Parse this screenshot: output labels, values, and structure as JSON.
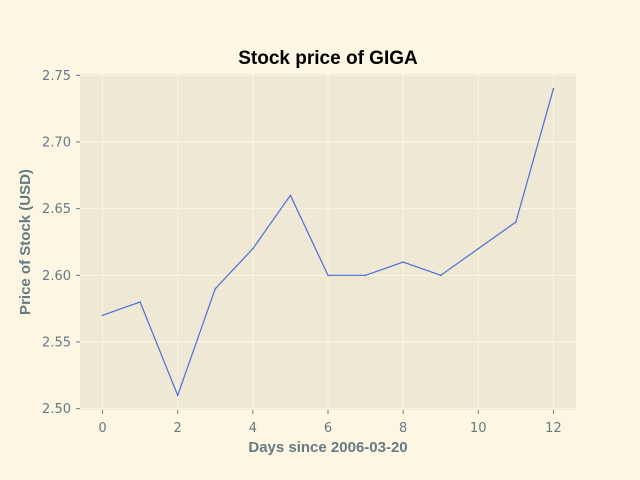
{
  "chart_data": {
    "type": "line",
    "title": "Stock price of GIGA",
    "xlabel": "Days since 2006-03-20",
    "ylabel": "Price of Stock (USD)",
    "x": [
      0,
      1,
      2,
      3,
      4,
      5,
      6,
      7,
      8,
      9,
      10,
      11,
      12
    ],
    "series": [
      {
        "values": [
          2.57,
          2.58,
          2.51,
          2.59,
          2.62,
          2.66,
          2.6,
          2.6,
          2.61,
          2.6,
          2.62,
          2.64,
          2.74
        ],
        "color": "#4c6fd6"
      }
    ],
    "xlim": [
      -0.6,
      12.6
    ],
    "ylim": [
      2.499,
      2.751
    ],
    "xticks": [
      0,
      2,
      4,
      6,
      8,
      10,
      12
    ],
    "xtick_labels": [
      "0",
      "2",
      "4",
      "6",
      "8",
      "10",
      "12"
    ],
    "yticks": [
      2.5,
      2.55,
      2.6,
      2.65,
      2.7,
      2.75
    ],
    "ytick_labels": [
      "2.50",
      "2.55",
      "2.60",
      "2.65",
      "2.70",
      "2.75"
    ],
    "grid": true,
    "legend": "none",
    "colors": {
      "figure_background": "#fdf6e3",
      "plot_background": "#eee8d5",
      "grid": "#fdf6e3",
      "text": "#657b83",
      "title": "#000000"
    }
  }
}
